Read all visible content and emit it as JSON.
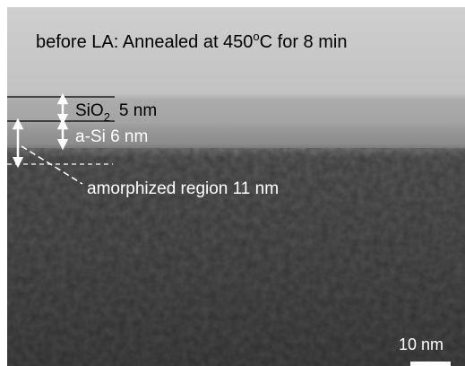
{
  "title": {
    "before": "before LA: Annealed at 450",
    "sup": "o",
    "after": "C for 8 min"
  },
  "labels": {
    "sio2": {
      "text": "SiO",
      "sub": "2",
      "thickness": "5 nm"
    },
    "asi": "a-Si 6 nm",
    "amorphized": "amorphized region 11 nm"
  },
  "scale_bar": "10 nm"
}
